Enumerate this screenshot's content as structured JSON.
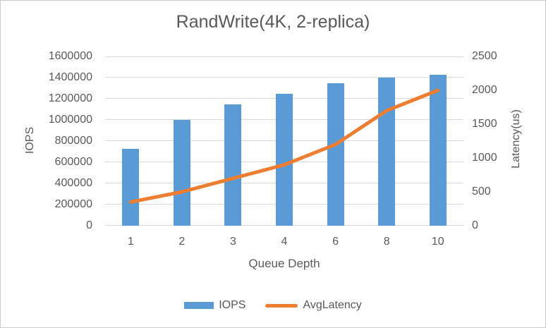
{
  "title": "RandWrite(4K, 2-replica)",
  "chart_data": {
    "type": "bar+line combo",
    "categories": [
      "1",
      "2",
      "3",
      "4",
      "6",
      "8",
      "10"
    ],
    "series": [
      {
        "name": "IOPS",
        "type": "bar",
        "axis": "left",
        "color": "#5B9BD5",
        "values": [
          730000,
          1000000,
          1150000,
          1250000,
          1350000,
          1400000,
          1430000
        ]
      },
      {
        "name": "AvgLatency",
        "type": "line",
        "axis": "right",
        "color": "#ED7D31",
        "values": [
          350,
          500,
          700,
          900,
          1200,
          1700,
          2000
        ]
      }
    ],
    "title": "RandWrite(4K, 2-replica)",
    "xlabel": "Queue Depth",
    "left_axis": {
      "label": "IOPS",
      "min": 0,
      "max": 1600000,
      "step": 200000,
      "ticks": [
        "0",
        "200000",
        "400000",
        "600000",
        "800000",
        "1000000",
        "1200000",
        "1400000",
        "1600000"
      ]
    },
    "right_axis": {
      "label": "Latency(us)",
      "min": 0,
      "max": 2500,
      "step": 500,
      "ticks": [
        "0",
        "500",
        "1000",
        "1500",
        "2000",
        "2500"
      ]
    },
    "grid": true,
    "legend_position": "bottom"
  },
  "colors": {
    "bar": "#5B9BD5",
    "line": "#ED7D31",
    "gridline": "#D9D9D9",
    "text": "#595959",
    "border": "#CBCBCB",
    "background": "#FFFFFF"
  }
}
